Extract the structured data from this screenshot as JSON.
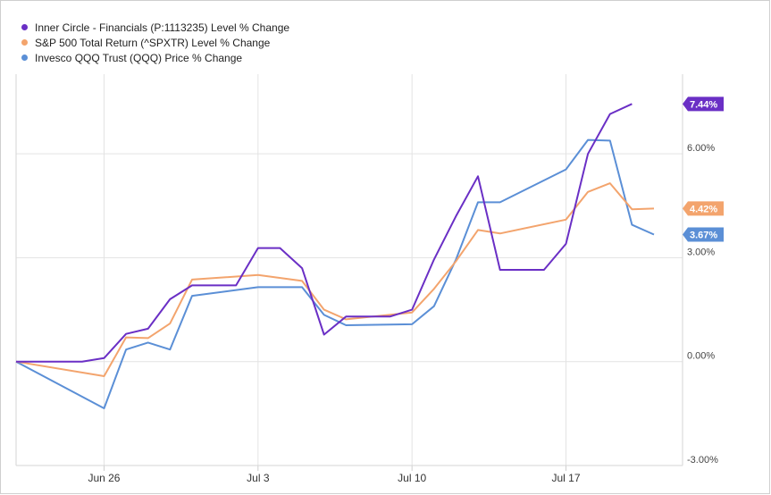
{
  "chart_data": {
    "type": "line",
    "x": [
      "Jun 22",
      "Jun 23",
      "Jun 24",
      "Jun 25",
      "Jun 26",
      "Jun 27",
      "Jun 28",
      "Jun 29",
      "Jun 30",
      "Jul 1",
      "Jul 2",
      "Jul 3",
      "Jul 4",
      "Jul 5",
      "Jul 6",
      "Jul 7",
      "Jul 8",
      "Jul 9",
      "Jul 10",
      "Jul 11",
      "Jul 12",
      "Jul 13",
      "Jul 14",
      "Jul 15",
      "Jul 16",
      "Jul 17",
      "Jul 18",
      "Jul 19",
      "Jul 20",
      "Jul 21"
    ],
    "xticks": [
      "Jun 26",
      "Jul 3",
      "Jul 10",
      "Jul 17"
    ],
    "ylim": [
      -3,
      8.3
    ],
    "yticks": [
      -3,
      0,
      3,
      6
    ],
    "ytick_labels": [
      "-3.00%",
      "0.00%",
      "3.00%",
      "6.00%"
    ],
    "grid": true,
    "legend_position": "top-left",
    "series": [
      {
        "name": "Inner Circle - Financials  (P:1113235) Level % Change",
        "color": "#6a2fc5",
        "points": [
          [
            "Jun 22",
            0
          ],
          [
            "Jun 23",
            0
          ],
          [
            "Jun 24",
            0
          ],
          [
            "Jun 25",
            0
          ],
          [
            "Jun 26",
            0.1
          ],
          [
            "Jun 27",
            0.8
          ],
          [
            "Jun 28",
            0.95
          ],
          [
            "Jun 29",
            1.8
          ],
          [
            "Jun 30",
            2.2
          ],
          [
            "Jul 1",
            2.2
          ],
          [
            "Jul 2",
            2.2
          ],
          [
            "Jul 3",
            3.28
          ],
          [
            "Jul 4",
            3.28
          ],
          [
            "Jul 5",
            2.7
          ],
          [
            "Jul 6",
            0.78
          ],
          [
            "Jul 7",
            1.3
          ],
          [
            "Jul 8",
            1.3
          ],
          [
            "Jul 9",
            1.3
          ],
          [
            "Jul 10",
            1.5
          ],
          [
            "Jul 11",
            2.95
          ],
          [
            "Jul 12",
            4.2
          ],
          [
            "Jul 13",
            5.35
          ],
          [
            "Jul 14",
            2.65
          ],
          [
            "Jul 15",
            2.65
          ],
          [
            "Jul 16",
            2.65
          ],
          [
            "Jul 17",
            3.4
          ],
          [
            "Jul 18",
            6.0
          ],
          [
            "Jul 19",
            7.15
          ],
          [
            "Jul 20",
            7.44
          ]
        ],
        "end_label": "7.44%"
      },
      {
        "name": "S&P 500 Total Return (^SPXTR) Level % Change",
        "color": "#f3a46d",
        "points": [
          [
            "Jun 22",
            0
          ],
          [
            "Jun 26",
            -0.42
          ],
          [
            "Jun 27",
            0.7
          ],
          [
            "Jun 28",
            0.68
          ],
          [
            "Jun 29",
            1.1
          ],
          [
            "Jun 30",
            2.37
          ],
          [
            "Jul 3",
            2.5
          ],
          [
            "Jul 5",
            2.33
          ],
          [
            "Jul 6",
            1.5
          ],
          [
            "Jul 7",
            1.22
          ],
          [
            "Jul 10",
            1.42
          ],
          [
            "Jul 11",
            2.1
          ],
          [
            "Jul 12",
            2.9
          ],
          [
            "Jul 13",
            3.8
          ],
          [
            "Jul 14",
            3.7
          ],
          [
            "Jul 17",
            4.1
          ],
          [
            "Jul 18",
            4.9
          ],
          [
            "Jul 19",
            5.15
          ],
          [
            "Jul 20",
            4.4
          ],
          [
            "Jul 21",
            4.42
          ]
        ],
        "end_label": "4.42%"
      },
      {
        "name": "Invesco QQQ Trust (QQQ) Price % Change",
        "color": "#5b8fd6",
        "points": [
          [
            "Jun 22",
            0
          ],
          [
            "Jun 26",
            -1.35
          ],
          [
            "Jun 27",
            0.35
          ],
          [
            "Jun 28",
            0.55
          ],
          [
            "Jun 29",
            0.35
          ],
          [
            "Jun 30",
            1.9
          ],
          [
            "Jul 3",
            2.15
          ],
          [
            "Jul 5",
            2.15
          ],
          [
            "Jul 6",
            1.35
          ],
          [
            "Jul 7",
            1.05
          ],
          [
            "Jul 10",
            1.08
          ],
          [
            "Jul 11",
            1.6
          ],
          [
            "Jul 12",
            2.95
          ],
          [
            "Jul 13",
            4.6
          ],
          [
            "Jul 14",
            4.6
          ],
          [
            "Jul 17",
            5.55
          ],
          [
            "Jul 18",
            6.4
          ],
          [
            "Jul 19",
            6.38
          ],
          [
            "Jul 20",
            3.95
          ],
          [
            "Jul 21",
            3.67
          ]
        ],
        "end_label": "3.67%"
      }
    ]
  }
}
